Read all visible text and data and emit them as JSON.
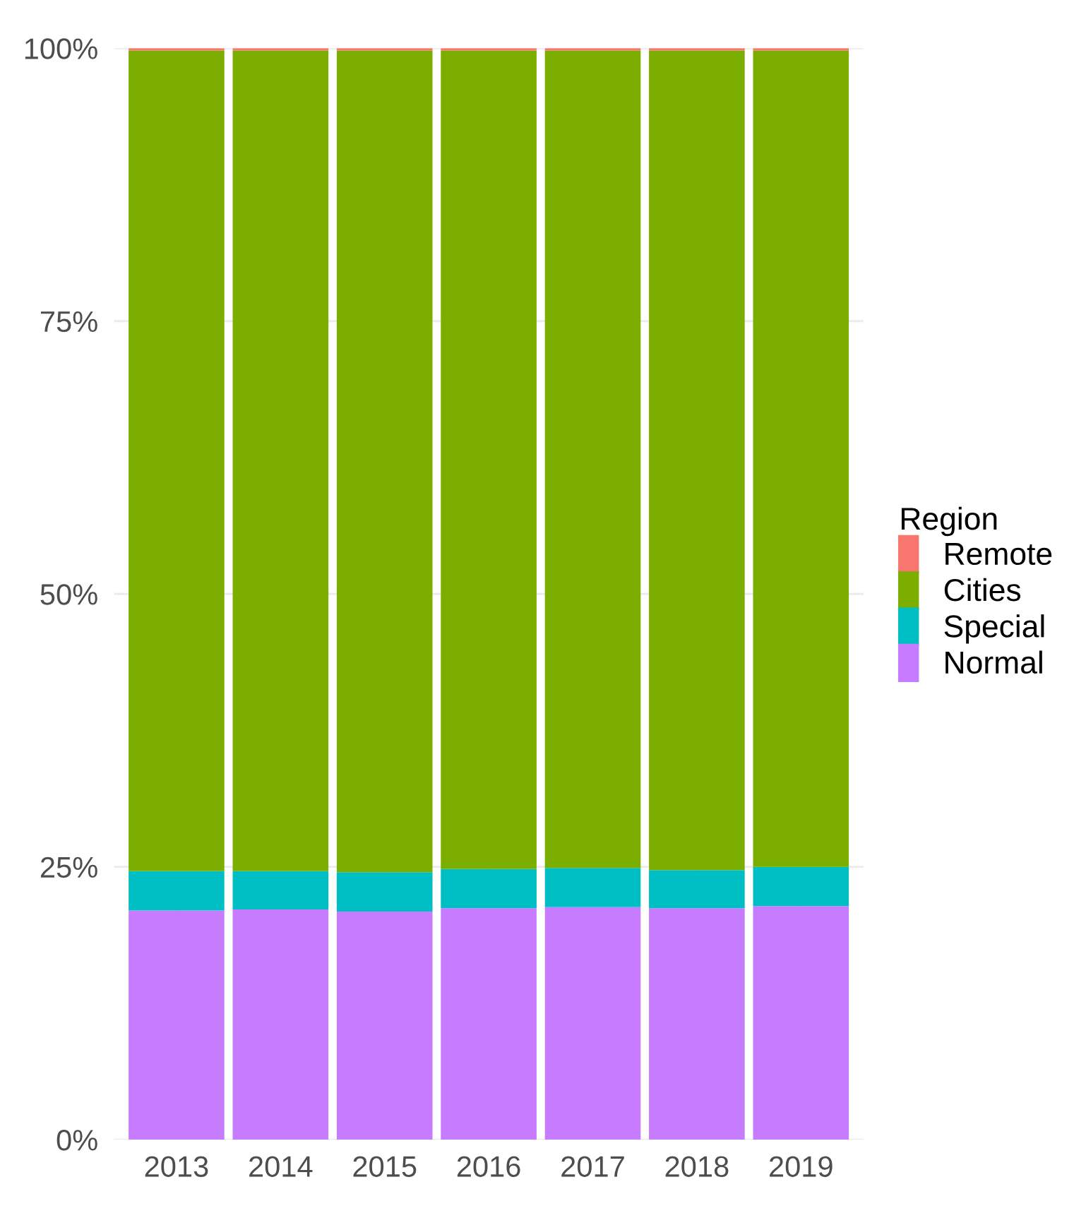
{
  "chart_data": {
    "type": "bar",
    "stacked": true,
    "categories": [
      "2013",
      "2014",
      "2015",
      "2016",
      "2017",
      "2018",
      "2019"
    ],
    "series": [
      {
        "name": "Normal",
        "color": "#c77cff",
        "values": [
          21.0,
          21.1,
          20.9,
          21.2,
          21.3,
          21.2,
          21.4
        ]
      },
      {
        "name": "Special",
        "color": "#00bfc4",
        "values": [
          3.6,
          3.5,
          3.6,
          3.6,
          3.6,
          3.5,
          3.6
        ]
      },
      {
        "name": "Cities",
        "color": "#7cae00",
        "values": [
          75.2,
          75.2,
          75.3,
          75.0,
          74.9,
          75.1,
          74.8
        ]
      },
      {
        "name": "Remote",
        "color": "#f8766d",
        "values": [
          0.2,
          0.2,
          0.2,
          0.2,
          0.2,
          0.2,
          0.2
        ]
      }
    ],
    "ylim": [
      0,
      100
    ],
    "yticks": [
      {
        "value": 0,
        "label": "0%"
      },
      {
        "value": 25,
        "label": "25%"
      },
      {
        "value": 50,
        "label": "50%"
      },
      {
        "value": 75,
        "label": "75%"
      },
      {
        "value": 100,
        "label": "100%"
      }
    ],
    "legend_title": "Region",
    "legend": "right",
    "grid": true
  }
}
